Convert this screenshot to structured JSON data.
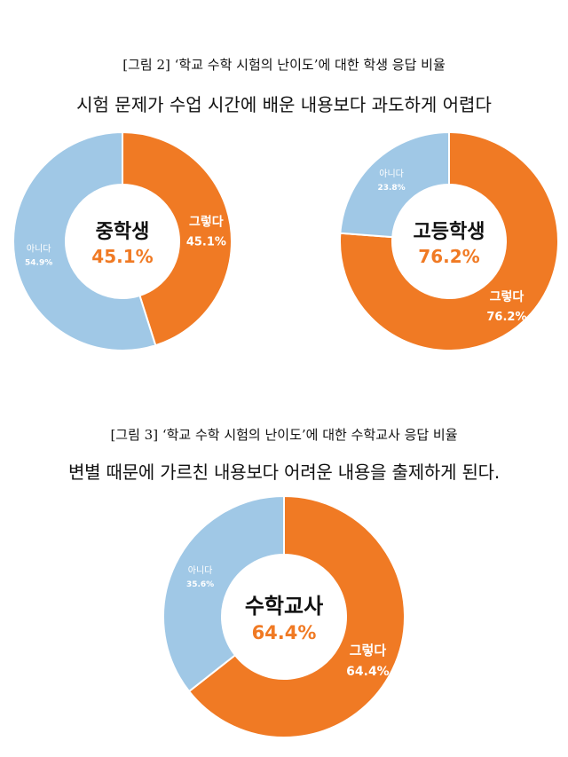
{
  "figure2": {
    "caption": "[그림 2] ‘학교 수학 시험의 난이도’에 대한 학생 응답 비율",
    "title": "시험 문제가 수업 시간에 배운 내용보다 과도하게 어렵다"
  },
  "figure3": {
    "caption": "[그림 3] ‘학교 수학 시험의 난이도’에 대한 수학교사 응답 비율",
    "title": "변별 때문에 가르친 내용보다 어려운 내용을 출제하게 된다."
  },
  "colors": {
    "yes": "#F07A24",
    "no": "#A0C8E6",
    "center_value": "#F07A24"
  },
  "chart_data": [
    {
      "type": "pie",
      "center_label": "중학생",
      "center_value": "45.1%",
      "categories": [
        "그렇다",
        "아니다"
      ],
      "values": [
        45.1,
        54.9
      ],
      "value_labels": [
        "45.1%",
        "54.9%"
      ],
      "colors": [
        "#F07A24",
        "#A0C8E6"
      ]
    },
    {
      "type": "pie",
      "center_label": "고등학생",
      "center_value": "76.2%",
      "categories": [
        "그렇다",
        "아니다"
      ],
      "values": [
        76.2,
        23.8
      ],
      "value_labels": [
        "76.2%",
        "23.8%"
      ],
      "colors": [
        "#F07A24",
        "#A0C8E6"
      ]
    },
    {
      "type": "pie",
      "center_label": "수학교사",
      "center_value": "64.4%",
      "categories": [
        "그렇다",
        "아니다"
      ],
      "values": [
        64.4,
        35.6
      ],
      "value_labels": [
        "64.4%",
        "35.6%"
      ],
      "colors": [
        "#F07A24",
        "#A0C8E6"
      ]
    }
  ]
}
